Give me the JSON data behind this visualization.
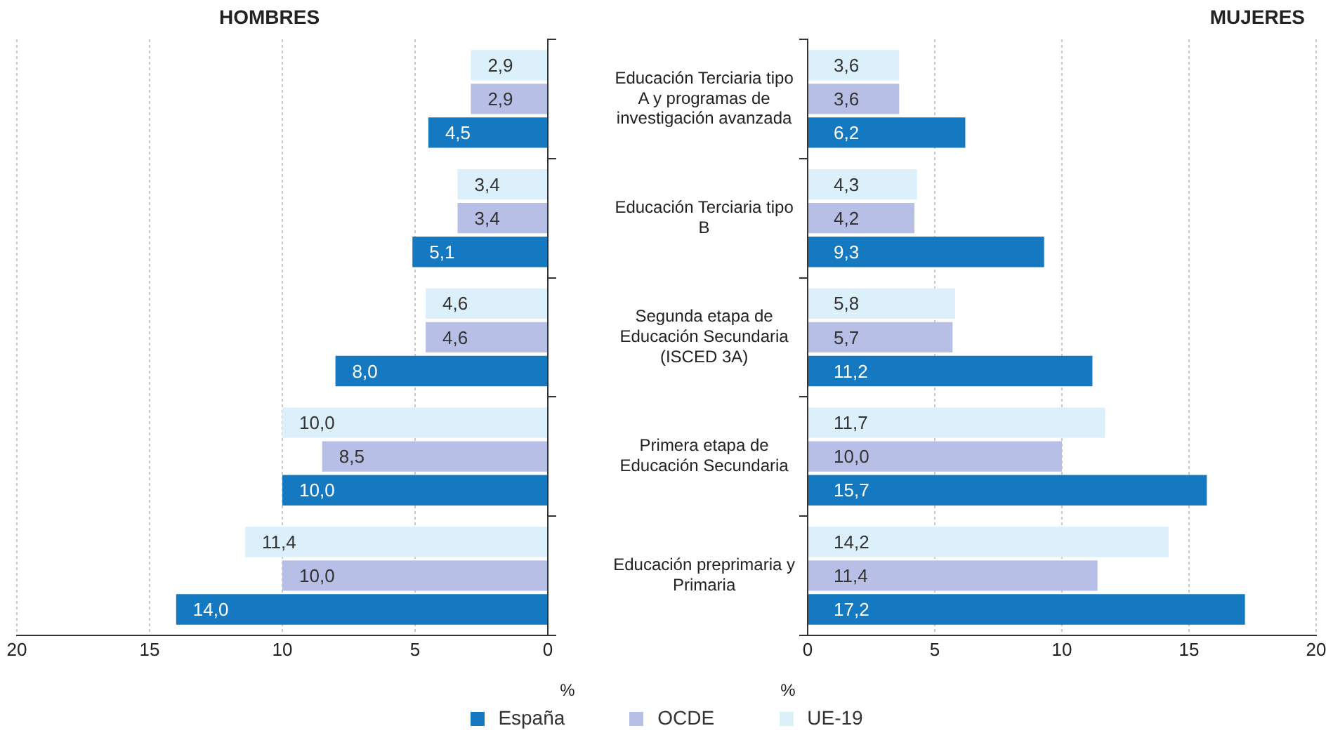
{
  "chart_data": [
    {
      "type": "bar",
      "orientation": "horizontal",
      "title": "HOMBRES",
      "xlabel": "%",
      "categories": [
        "Educación Terciaria tipo A y programas de investigación avanzada",
        "Educación Terciaria tipo B",
        "Segunda etapa de Educación Secundaria (ISCED 3A)",
        "Primera etapa de Educación Secundaria",
        "Educación preprimaria y Primaria"
      ],
      "xlim": [
        20,
        0
      ],
      "xticks": [
        20,
        15,
        10,
        5,
        0
      ],
      "grid": "x",
      "legend": "bottom",
      "tick_labels": "x",
      "series": [
        {
          "name": "España",
          "color": "#1479c0",
          "values": [
            4.5,
            5.1,
            8.0,
            10.0,
            14.0
          ],
          "value_labels": [
            "4,5",
            "5,1",
            "8,0",
            "10,0",
            "14,0"
          ]
        },
        {
          "name": "OCDE",
          "color": "#b7bfe6",
          "values": [
            2.9,
            3.4,
            4.6,
            8.5,
            10.0
          ],
          "value_labels": [
            "2,9",
            "3,4",
            "4,6",
            "8,5",
            "10,0"
          ]
        },
        {
          "name": "UE-19",
          "color": "#dcf0fb",
          "values": [
            2.9,
            3.4,
            4.6,
            10.0,
            11.4
          ],
          "value_labels": [
            "2,9",
            "3,4",
            "4,6",
            "10,0",
            "11,4"
          ]
        }
      ]
    },
    {
      "type": "bar",
      "orientation": "horizontal",
      "title": "MUJERES",
      "xlabel": "%",
      "categories": [
        "Educación Terciaria tipo A y programas de investigación avanzada",
        "Educación Terciaria tipo B",
        "Segunda etapa de Educación Secundaria (ISCED 3A)",
        "Primera etapa de Educación Secundaria",
        "Educación preprimaria y Primaria"
      ],
      "xlim": [
        0,
        20
      ],
      "xticks": [
        0,
        5,
        10,
        15,
        20
      ],
      "grid": "x",
      "series": [
        {
          "color": "#1479c0",
          "values": [
            6.2,
            9.3,
            11.2,
            15.7,
            17.2
          ],
          "value_labels": [
            "6,2",
            "9,3",
            "11,2",
            "15,7",
            "17,2"
          ]
        },
        {
          "color": "#b7bfe6",
          "values": [
            3.6,
            4.2,
            5.7,
            10.0,
            11.4
          ],
          "value_labels": [
            "3,6",
            "4,2",
            "5,7",
            "10,0",
            "11,4"
          ]
        },
        {
          "color": "#dcf0fb",
          "values": [
            3.6,
            4.3,
            5.8,
            11.7,
            14.2
          ],
          "value_labels": [
            "3,6",
            "4,3",
            "5,8",
            "11,7",
            "14,2"
          ]
        }
      ]
    }
  ]
}
